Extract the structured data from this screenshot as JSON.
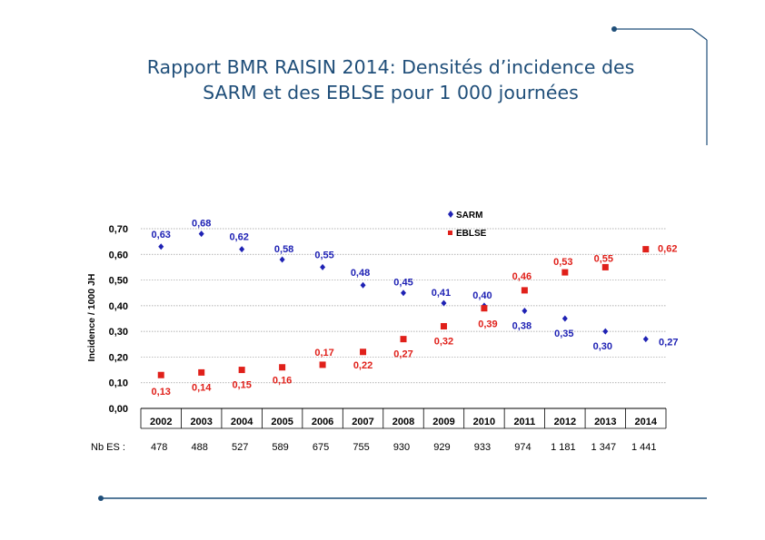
{
  "slide": {
    "title_line1": "Rapport BMR RAISIN 2014: Densités d’incidence des",
    "title_line2": "SARM et des EBLSE pour 1 000 journées"
  },
  "chart_data": {
    "type": "scatter",
    "title": "Rapport BMR RAISIN 2014: Densités d’incidence des SARM et des EBLSE pour 1 000 journées",
    "ylabel": "Incidence / 1000 JH",
    "xlabel": "",
    "ylim": [
      0,
      0.7
    ],
    "yticks": [
      "0,00",
      "0,10",
      "0,20",
      "0,30",
      "0,40",
      "0,50",
      "0,60",
      "0,70"
    ],
    "categories": [
      "2002",
      "2003",
      "2004",
      "2005",
      "2006",
      "2007",
      "2008",
      "2009",
      "2010",
      "2011",
      "2012",
      "2013",
      "2014"
    ],
    "legend_position": "top-right",
    "grid": true,
    "series": [
      {
        "name": "SARM",
        "color": "#1f22b4",
        "marker": "diamond",
        "values": [
          0.63,
          0.68,
          0.62,
          0.58,
          0.55,
          0.48,
          0.45,
          0.41,
          0.4,
          0.38,
          0.35,
          0.3,
          0.27
        ],
        "labels": [
          "0,63",
          "0,68",
          "0,62",
          "0,58",
          "0,55",
          "0,48",
          "0,45",
          "0,41",
          "0,40",
          "0,38",
          "0,35",
          "0,30",
          "0,27"
        ]
      },
      {
        "name": "EBLSE",
        "color": "#e0201a",
        "marker": "square",
        "values": [
          0.13,
          0.14,
          0.15,
          0.16,
          0.17,
          0.22,
          0.27,
          0.32,
          0.39,
          0.46,
          0.53,
          0.55,
          0.62
        ],
        "labels": [
          "0,13",
          "0,14",
          "0,15",
          "0,16",
          "0,17",
          "0,22",
          "0,27",
          "0,32",
          "0,39",
          "0,46",
          "0,53",
          "0,55",
          "0,62"
        ]
      }
    ],
    "nb_es_label": "Nb ES :",
    "nb_es": [
      "478",
      "488",
      "527",
      "589",
      "675",
      "755",
      "930",
      "929",
      "933",
      "974",
      "1 181",
      "1 347",
      "1 441"
    ]
  }
}
